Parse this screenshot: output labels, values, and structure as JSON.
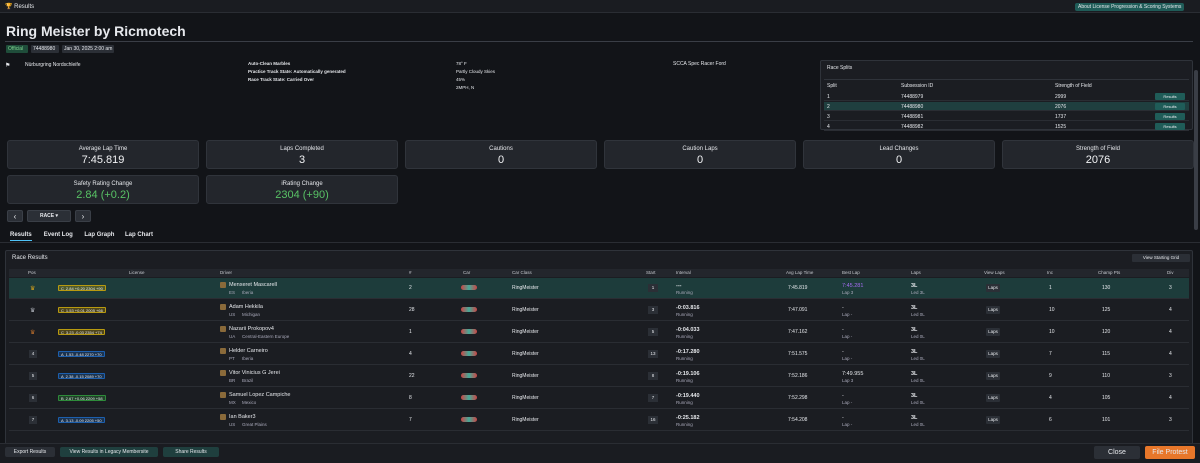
{
  "topbar": {
    "title": "Results",
    "help": "About License Progression & Scoring Systems"
  },
  "header": {
    "title": "Ring Meister by Ricmotech",
    "badges": [
      "Official",
      "74488980",
      "Jan 30, 2025 2:00 am"
    ]
  },
  "info": {
    "track": "Nürburgring Nordschleife",
    "conditions": [
      "Auto-Clean Marbles",
      "Practice Track State: Automatically generated",
      "Race Track State: Carried Over"
    ],
    "weather": [
      "78° F",
      "Partly Cloudy Skies",
      "45%",
      "2MPH, N"
    ],
    "car": "SCCA Spec Racer Ford"
  },
  "splits": {
    "title": "Race Splits",
    "columns": [
      "Split",
      "Subsession ID",
      "Strength of Field"
    ],
    "button": "Results",
    "current": 1,
    "rows": [
      [
        "1",
        "74488979",
        "2999"
      ],
      [
        "2",
        "74488980",
        "2076"
      ],
      [
        "3",
        "74488981",
        "1737"
      ],
      [
        "4",
        "74488982",
        "1525"
      ]
    ]
  },
  "stats": [
    {
      "label": "Average Lap Time",
      "value": "7:45.819"
    },
    {
      "label": "Laps Completed",
      "value": "3"
    },
    {
      "label": "Cautions",
      "value": "0"
    },
    {
      "label": "Caution Laps",
      "value": "0"
    },
    {
      "label": "Lead Changes",
      "value": "0"
    },
    {
      "label": "Strength of Field",
      "value": "2076"
    },
    {
      "label": "Safety Rating Change",
      "value": "2.84 (+0.2)",
      "positive": true
    },
    {
      "label": "iRating Change",
      "value": "2304 (+90)",
      "positive": true
    }
  ],
  "session": "RACE",
  "tabs": [
    "Results",
    "Event Log",
    "Lap Graph",
    "Lap Chart"
  ],
  "active_tab": 0,
  "results": {
    "title": "Race Results",
    "grid_button": "View Starting Grid",
    "laps_button": "Laps",
    "current": 0,
    "columns": [
      "Pos",
      "License",
      "Driver",
      "#",
      "Car",
      "Car Class",
      "Start",
      "Interval",
      "Avg Lap Time",
      "Best Lap",
      "Laps",
      "View Laps",
      "Inc",
      "Champ Pts",
      "Div"
    ],
    "rows": [
      {
        "trophy": "#d8a31a",
        "class": "C",
        "license": "2.84 +0.20 2304 +90",
        "driver": "Menxeret Mascarell",
        "country": "ES",
        "region": "Iberia",
        "number": "2",
        "car_class": "RingMeister",
        "start": "1",
        "interval": "---",
        "status": "Running",
        "avg": "7:45.819",
        "best": "7:45.281",
        "best_lap": "Lap 3",
        "fastest": true,
        "laps": "3L",
        "led": "Led 3L",
        "inc": "1",
        "pts": "130",
        "div": "3"
      },
      {
        "trophy": "#b8bcc4",
        "class": "C",
        "license": "1.53 +0.01 2005 +66",
        "driver": "Adam Hekkila",
        "country": "US",
        "region": "Michigan",
        "number": "28",
        "car_class": "RingMeister",
        "start": "3",
        "interval": "-0:03.816",
        "status": "Running",
        "avg": "7:47.091",
        "best": "-",
        "best_lap": "Lap -",
        "laps": "3L",
        "led": "Led 0L",
        "inc": "10",
        "pts": "125",
        "div": "4"
      },
      {
        "trophy": "#c7742c",
        "class": "C",
        "license": "3.23 -0.03 2354 +74",
        "driver": "Nazarii Prokopov4",
        "country": "UA",
        "region": "Central-Eastern Europe",
        "number": "1",
        "car_class": "RingMeister",
        "start": "5",
        "interval": "-0:04.033",
        "status": "Running",
        "avg": "7:47.162",
        "best": "-",
        "best_lap": "Lap -",
        "laps": "3L",
        "led": "Led 0L",
        "inc": "10",
        "pts": "120",
        "div": "4"
      },
      {
        "pos": "4",
        "class": "A",
        "license": "1.53 -0.48 2270 +70",
        "driver": "Helder Carneiro",
        "country": "PT",
        "region": "Iberia",
        "number": "4",
        "car_class": "RingMeister",
        "start": "13",
        "interval": "-0:17.280",
        "status": "Running",
        "avg": "7:51.575",
        "best": "-",
        "best_lap": "Lap -",
        "laps": "3L",
        "led": "Led 0L",
        "inc": "7",
        "pts": "115",
        "div": "4"
      },
      {
        "pos": "5",
        "class": "A",
        "license": "2.38 -0.15 2089 +70",
        "driver": "Vitor Vinicius G Jerei",
        "country": "BR",
        "region": "Brazil",
        "number": "22",
        "car_class": "RingMeister",
        "start": "8",
        "interval": "-0:19.106",
        "status": "Running",
        "avg": "7:52.186",
        "best": "7:49.955",
        "best_lap": "Lap 3",
        "laps": "3L",
        "led": "Led 0L",
        "inc": "9",
        "pts": "110",
        "div": "3"
      },
      {
        "pos": "6",
        "class": "B",
        "license": "2.67 +0.06 2209 +58",
        "driver": "Samuel Lopez Campiche",
        "country": "MX",
        "region": "Mexico",
        "number": "8",
        "car_class": "RingMeister",
        "start": "7",
        "interval": "-0:19.440",
        "status": "Running",
        "avg": "7:52.298",
        "best": "-",
        "best_lap": "Lap -",
        "laps": "3L",
        "led": "Led 0L",
        "inc": "4",
        "pts": "105",
        "div": "4"
      },
      {
        "pos": "7",
        "class": "A",
        "license": "3.13 -0.09 2205 +50",
        "driver": "Ian Baker3",
        "country": "US",
        "region": "Great Plains",
        "number": "7",
        "car_class": "RingMeister",
        "start": "16",
        "interval": "-0:25.182",
        "status": "Running",
        "avg": "7:54.208",
        "best": "-",
        "best_lap": "Lap -",
        "laps": "3L",
        "led": "Led 0L",
        "inc": "6",
        "pts": "101",
        "div": "3"
      }
    ]
  },
  "footer": {
    "buttons": [
      "Export Results",
      "View Results in Legacy Membersite",
      "Share Results"
    ],
    "close": "Close",
    "protest": "File Protest"
  }
}
